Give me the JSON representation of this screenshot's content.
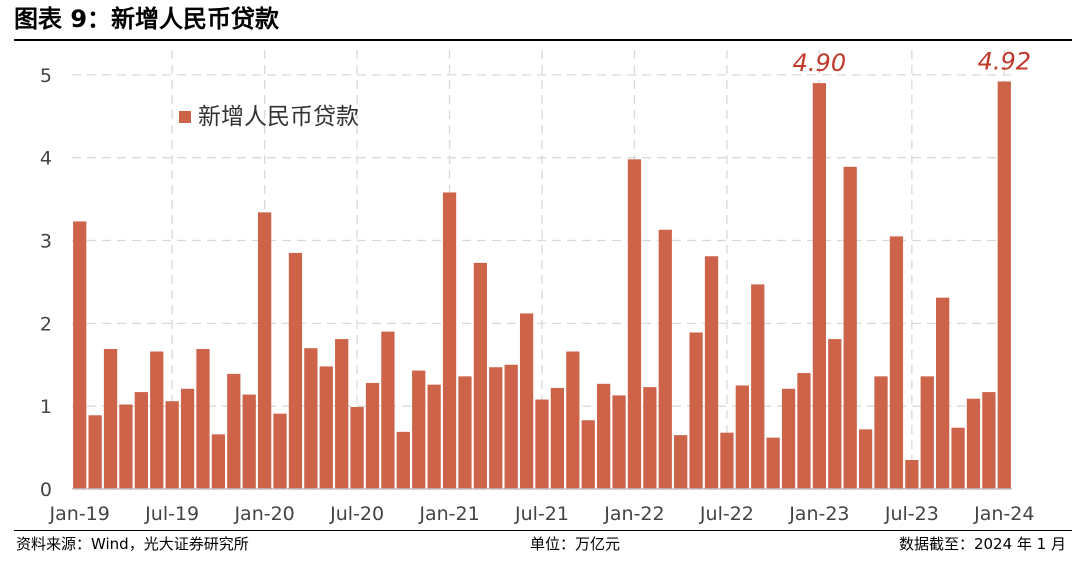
{
  "figure": {
    "title": "图表 9：新增人民币贷款"
  },
  "chart_data": {
    "type": "bar",
    "title": "",
    "xlabel": "",
    "ylabel": "",
    "ylim": [
      0,
      5.3
    ],
    "yticks": [
      0,
      1,
      2,
      3,
      4,
      5
    ],
    "grid": true,
    "legend_position": "top-left",
    "bar_color": "#cd6349",
    "annotation_color": "#c0392b",
    "grid_color": "#d9d9d9",
    "series": [
      {
        "name": "新增人民币贷款",
        "values": [
          3.23,
          0.89,
          1.69,
          1.02,
          1.17,
          1.66,
          1.06,
          1.21,
          1.69,
          0.66,
          1.39,
          1.14,
          3.34,
          0.91,
          2.85,
          1.7,
          1.48,
          1.81,
          0.99,
          1.28,
          1.9,
          0.69,
          1.43,
          1.26,
          3.58,
          1.36,
          2.73,
          1.47,
          1.5,
          2.12,
          1.08,
          1.22,
          1.66,
          0.83,
          1.27,
          1.13,
          3.98,
          1.23,
          3.13,
          0.65,
          1.89,
          2.81,
          0.68,
          1.25,
          2.47,
          0.62,
          1.21,
          1.4,
          4.9,
          1.81,
          3.89,
          0.72,
          1.36,
          3.05,
          0.35,
          1.36,
          2.31,
          0.74,
          1.09,
          1.17,
          4.92
        ]
      }
    ],
    "categories": [
      "Jan-19",
      "Feb-19",
      "Mar-19",
      "Apr-19",
      "May-19",
      "Jun-19",
      "Jul-19",
      "Aug-19",
      "Sep-19",
      "Oct-19",
      "Nov-19",
      "Dec-19",
      "Jan-20",
      "Feb-20",
      "Mar-20",
      "Apr-20",
      "May-20",
      "Jun-20",
      "Jul-20",
      "Aug-20",
      "Sep-20",
      "Oct-20",
      "Nov-20",
      "Dec-20",
      "Jan-21",
      "Feb-21",
      "Mar-21",
      "Apr-21",
      "May-21",
      "Jun-21",
      "Jul-21",
      "Aug-21",
      "Sep-21",
      "Oct-21",
      "Nov-21",
      "Dec-21",
      "Jan-22",
      "Feb-22",
      "Mar-22",
      "Apr-22",
      "May-22",
      "Jun-22",
      "Jul-22",
      "Aug-22",
      "Sep-22",
      "Oct-22",
      "Nov-22",
      "Dec-22",
      "Jan-23",
      "Feb-23",
      "Mar-23",
      "Apr-23",
      "May-23",
      "Jun-23",
      "Jul-23",
      "Aug-23",
      "Sep-23",
      "Oct-23",
      "Nov-23",
      "Dec-23",
      "Jan-24"
    ],
    "xtick_labels": [
      {
        "index": 0,
        "label": "Jan-19"
      },
      {
        "index": 6,
        "label": "Jul-19"
      },
      {
        "index": 12,
        "label": "Jan-20"
      },
      {
        "index": 18,
        "label": "Jul-20"
      },
      {
        "index": 24,
        "label": "Jan-21"
      },
      {
        "index": 30,
        "label": "Jul-21"
      },
      {
        "index": 36,
        "label": "Jan-22"
      },
      {
        "index": 42,
        "label": "Jul-22"
      },
      {
        "index": 48,
        "label": "Jan-23"
      },
      {
        "index": 54,
        "label": "Jul-23"
      },
      {
        "index": 60,
        "label": "Jan-24"
      }
    ],
    "annotations": [
      {
        "index": 48,
        "text": "4.90"
      },
      {
        "index": 60,
        "text": "4.92"
      }
    ]
  },
  "footer": {
    "source": "资料来源：Wind，光大证券研究所",
    "unit": "单位：万亿元",
    "as_of": "数据截至：2024 年 1 月"
  }
}
